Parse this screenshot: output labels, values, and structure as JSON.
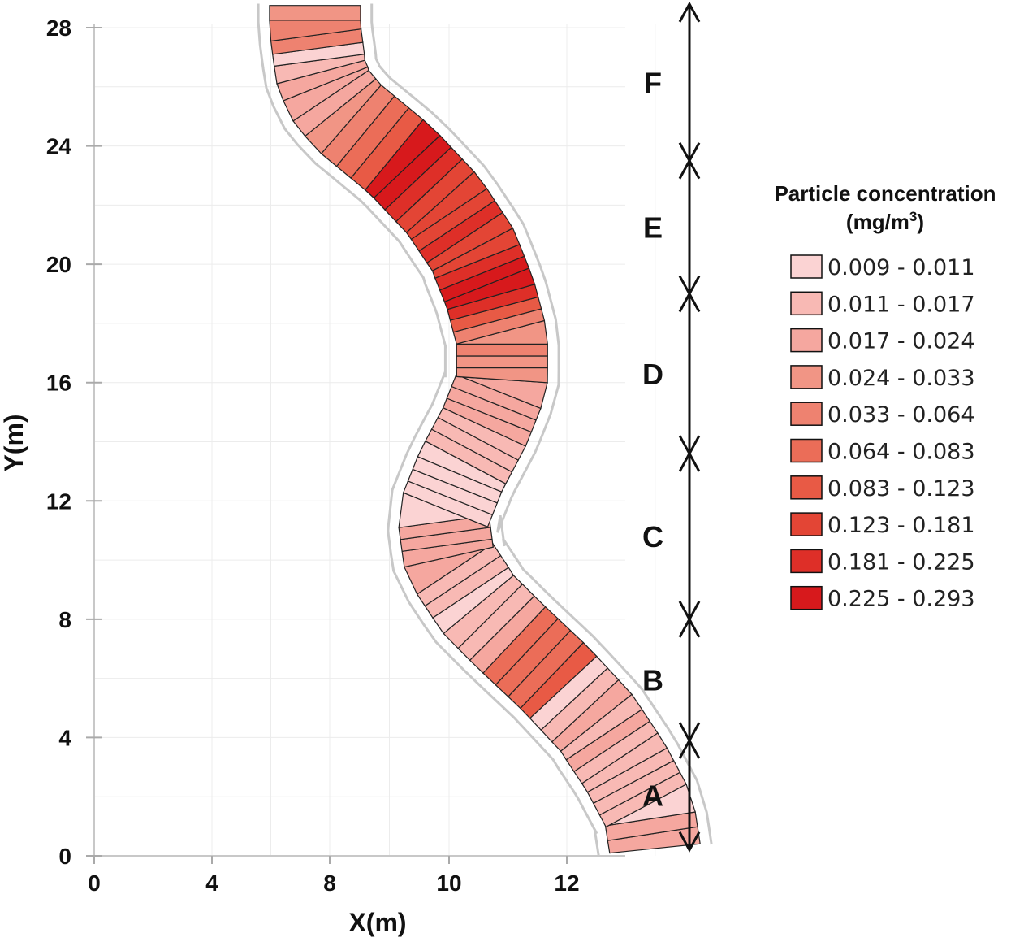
{
  "chart_data": {
    "type": "scatter",
    "subtype": "colored-cell-map",
    "xlabel": "X(m)",
    "ylabel": "Y(m)",
    "xlim": [
      0,
      13.5
    ],
    "ylim": [
      0,
      28.5
    ],
    "x_ticks": [
      {
        "value": 0,
        "label": "0"
      },
      {
        "value": 4,
        "label": "4"
      },
      {
        "value": 8,
        "label": "8"
      },
      {
        "value": 10,
        "label": "10"
      },
      {
        "value": 12,
        "label": "12"
      }
    ],
    "y_ticks": [
      {
        "value": 0,
        "label": "0"
      },
      {
        "value": 4,
        "label": "4"
      },
      {
        "value": 8,
        "label": "8"
      },
      {
        "value": 12,
        "label": "12"
      },
      {
        "value": 16,
        "label": "16"
      },
      {
        "value": 20,
        "label": "20"
      },
      {
        "value": 24,
        "label": "24"
      },
      {
        "value": 28,
        "label": "28"
      }
    ],
    "grid": true,
    "legend": {
      "title_line1": "Particle concentration",
      "title_line2_main": "(mg/m",
      "title_line2_sup": "3",
      "title_line2_end": ")",
      "placement": "right",
      "classes": [
        {
          "label": "0.009 - 0.011",
          "color": "#fbd3d3"
        },
        {
          "label": "0.011 - 0.017",
          "color": "#f8b9b4"
        },
        {
          "label": "0.017 - 0.024",
          "color": "#f5a79f"
        },
        {
          "label": "0.024 - 0.033",
          "color": "#f19585"
        },
        {
          "label": "0.033 - 0.064",
          "color": "#ee8270"
        },
        {
          "label": "0.064 - 0.083",
          "color": "#eb6d58"
        },
        {
          "label": "0.083 - 0.123",
          "color": "#e85a45"
        },
        {
          "label": "0.123 - 0.181",
          "color": "#e34535"
        },
        {
          "label": "0.181 - 0.225",
          "color": "#de2f28"
        },
        {
          "label": "0.225 - 0.293",
          "color": "#d7191c"
        }
      ]
    },
    "sections": [
      {
        "label": "A",
        "y_start": 0.2,
        "y_end": 3.9
      },
      {
        "label": "B",
        "y_start": 3.9,
        "y_end": 8.0
      },
      {
        "label": "C",
        "y_start": 8.0,
        "y_end": 13.6
      },
      {
        "label": "D",
        "y_start": 13.6,
        "y_end": 19.0
      },
      {
        "label": "E",
        "y_start": 19.0,
        "y_end": 23.5
      },
      {
        "label": "F",
        "y_start": 23.5,
        "y_end": 28.8
      }
    ],
    "centerline": [
      {
        "y": 0.2,
        "x": 13.5
      },
      {
        "y": 1.5,
        "x": 13.4
      },
      {
        "y": 3.0,
        "x": 13.0
      },
      {
        "y": 4.5,
        "x": 12.5
      },
      {
        "y": 6.0,
        "x": 11.8
      },
      {
        "y": 7.5,
        "x": 11.0
      },
      {
        "y": 8.5,
        "x": 10.5
      },
      {
        "y": 10.0,
        "x": 10.0
      },
      {
        "y": 11.5,
        "x": 9.9
      },
      {
        "y": 13.0,
        "x": 10.2
      },
      {
        "y": 14.5,
        "x": 10.6
      },
      {
        "y": 16.0,
        "x": 10.9
      },
      {
        "y": 17.5,
        "x": 10.9
      },
      {
        "y": 19.0,
        "x": 10.7
      },
      {
        "y": 20.5,
        "x": 10.4
      },
      {
        "y": 22.0,
        "x": 9.9
      },
      {
        "y": 23.5,
        "x": 9.2
      },
      {
        "y": 25.0,
        "x": 8.3
      },
      {
        "y": 26.5,
        "x": 7.7
      },
      {
        "y": 28.0,
        "x": 7.5
      },
      {
        "y": 28.8,
        "x": 7.5
      }
    ],
    "cells": [
      {
        "y": 0.5,
        "class": 2
      },
      {
        "y": 1.0,
        "class": 2
      },
      {
        "y": 1.5,
        "class": 0
      },
      {
        "y": 1.9,
        "class": 1
      },
      {
        "y": 2.3,
        "class": 1
      },
      {
        "y": 2.7,
        "class": 1
      },
      {
        "y": 3.1,
        "class": 1
      },
      {
        "y": 3.5,
        "class": 1
      },
      {
        "y": 3.9,
        "class": 2
      },
      {
        "y": 4.3,
        "class": 1
      },
      {
        "y": 4.7,
        "class": 2
      },
      {
        "y": 5.1,
        "class": 1
      },
      {
        "y": 5.5,
        "class": 0
      },
      {
        "y": 5.9,
        "class": 6
      },
      {
        "y": 6.3,
        "class": 5
      },
      {
        "y": 6.7,
        "class": 5
      },
      {
        "y": 7.1,
        "class": 5
      },
      {
        "y": 7.5,
        "class": 2
      },
      {
        "y": 7.9,
        "class": 1
      },
      {
        "y": 8.3,
        "class": 1
      },
      {
        "y": 8.7,
        "class": 0
      },
      {
        "y": 9.1,
        "class": 1
      },
      {
        "y": 9.5,
        "class": 1
      },
      {
        "y": 9.9,
        "class": 2
      },
      {
        "y": 10.3,
        "class": 2
      },
      {
        "y": 10.7,
        "class": 2
      },
      {
        "y": 11.1,
        "class": 2
      },
      {
        "y": 11.5,
        "class": 0
      },
      {
        "y": 11.9,
        "class": 0
      },
      {
        "y": 12.3,
        "class": 0
      },
      {
        "y": 12.7,
        "class": 0
      },
      {
        "y": 13.1,
        "class": 0
      },
      {
        "y": 13.5,
        "class": 1
      },
      {
        "y": 13.9,
        "class": 1
      },
      {
        "y": 14.3,
        "class": 1
      },
      {
        "y": 14.7,
        "class": 2
      },
      {
        "y": 15.1,
        "class": 2
      },
      {
        "y": 15.5,
        "class": 2
      },
      {
        "y": 15.9,
        "class": 2
      },
      {
        "y": 16.3,
        "class": 3
      },
      {
        "y": 16.7,
        "class": 3
      },
      {
        "y": 17.1,
        "class": 4
      },
      {
        "y": 17.5,
        "class": 3
      },
      {
        "y": 17.9,
        "class": 4
      },
      {
        "y": 18.3,
        "class": 6
      },
      {
        "y": 18.7,
        "class": 8
      },
      {
        "y": 19.1,
        "class": 9
      },
      {
        "y": 19.5,
        "class": 9
      },
      {
        "y": 19.9,
        "class": 8
      },
      {
        "y": 20.3,
        "class": 7
      },
      {
        "y": 20.7,
        "class": 7
      },
      {
        "y": 21.1,
        "class": 8
      },
      {
        "y": 21.5,
        "class": 7
      },
      {
        "y": 21.9,
        "class": 7
      },
      {
        "y": 22.3,
        "class": 7
      },
      {
        "y": 22.7,
        "class": 8
      },
      {
        "y": 23.1,
        "class": 9
      },
      {
        "y": 23.5,
        "class": 9
      },
      {
        "y": 23.9,
        "class": 6
      },
      {
        "y": 24.3,
        "class": 5
      },
      {
        "y": 24.7,
        "class": 4
      },
      {
        "y": 25.1,
        "class": 3
      },
      {
        "y": 25.5,
        "class": 2
      },
      {
        "y": 25.9,
        "class": 2
      },
      {
        "y": 26.3,
        "class": 2
      },
      {
        "y": 26.7,
        "class": 1
      },
      {
        "y": 27.1,
        "class": 0
      },
      {
        "y": 27.5,
        "class": 4
      },
      {
        "y": 28.0,
        "class": 4
      },
      {
        "y": 28.5,
        "class": 3
      }
    ]
  }
}
